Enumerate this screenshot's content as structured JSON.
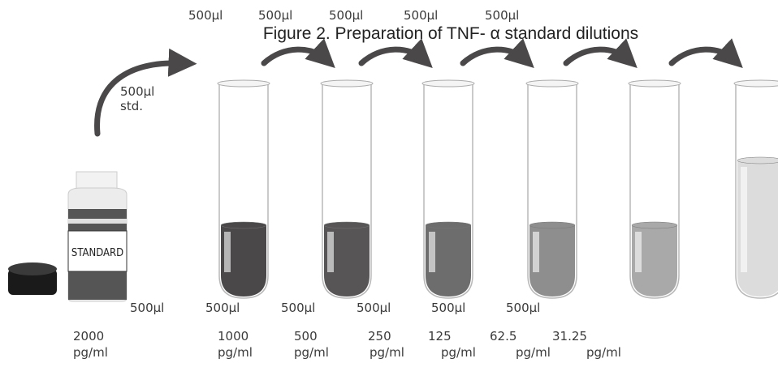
{
  "title": "Figure 2. Preparation of TNF- α standard dilutions",
  "top_volumes": [
    "500µl",
    "500µl",
    "500µl",
    "500µl",
    "500µl"
  ],
  "standard_transfer": {
    "volume": "500µl",
    "label": "std."
  },
  "bottle_label": "STANDARD",
  "bottom_volumes": [
    "500µl",
    "500µl",
    "500µl",
    "500µl",
    "500µl",
    "500µl"
  ],
  "concentrations": [
    {
      "amount": "2000",
      "unit": "pg/ml"
    },
    {
      "amount": "1000",
      "unit": "pg/ml"
    },
    {
      "amount": "500",
      "unit": "pg/ml"
    },
    {
      "amount": "250",
      "unit": "pg/ml"
    },
    {
      "amount": "125",
      "unit": "pg/ml"
    },
    {
      "amount": "62.5",
      "unit": "pg/ml"
    },
    {
      "amount": "31.25",
      "unit": "pg/ml"
    }
  ]
}
